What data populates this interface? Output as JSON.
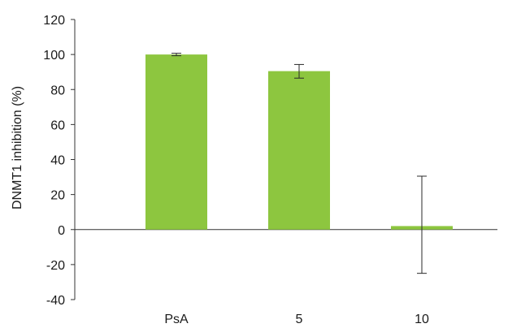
{
  "chart_data": {
    "type": "bar",
    "title": "",
    "xlabel": "",
    "ylabel": "DNMT1 inhibition (%)",
    "ylim": [
      -40,
      120
    ],
    "yticks": [
      -40,
      -20,
      0,
      20,
      40,
      60,
      80,
      100,
      120
    ],
    "ytick_labels": [
      "-40",
      "-20",
      "0",
      "20",
      "40",
      "60",
      "80",
      "100",
      "120"
    ],
    "categories": [
      "PsA",
      "5",
      "10"
    ],
    "values": [
      100,
      90.5,
      2
    ],
    "error_low": [
      99.3,
      86.5,
      -25
    ],
    "error_high": [
      100.7,
      94.3,
      30.5
    ],
    "grid": false,
    "legend": "none",
    "bar_color": "#8dc63f"
  }
}
